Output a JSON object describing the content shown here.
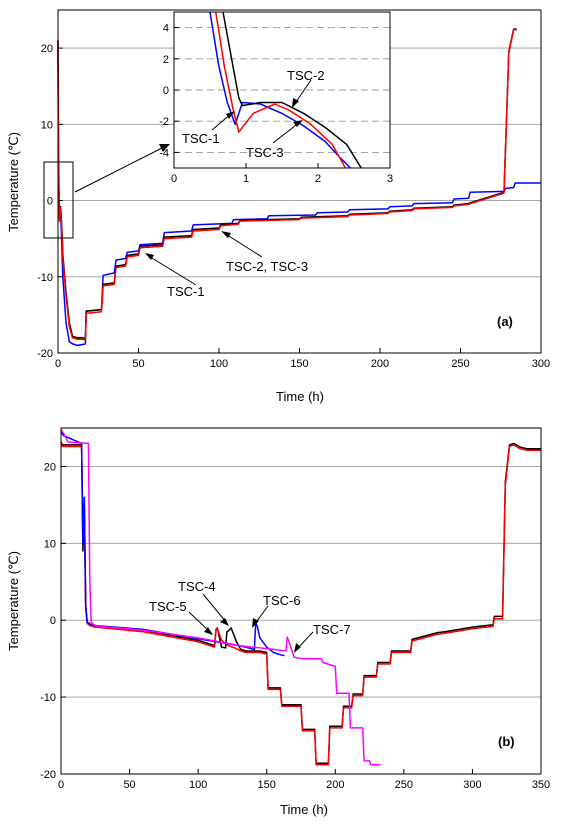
{
  "chart_data": [
    {
      "type": "line",
      "panel_label": "(a)",
      "xlabel": "Time (h)",
      "ylabel": "Temperature (℃)",
      "xlim": [
        0,
        300
      ],
      "ylim": [
        -20,
        25
      ],
      "xticks": [
        "0",
        "50",
        "100",
        "150",
        "200",
        "250",
        "300"
      ],
      "yticks": [
        "-20",
        "-10",
        "0",
        "10",
        "20"
      ],
      "grid": "horizontal gray lines at major y ticks",
      "colors": {
        "TSC-1": "#0000ff",
        "TSC-2": "#000000",
        "TSC-3": "#ff0000"
      },
      "series": [
        {
          "name": "TSC-1",
          "x": [
            0,
            0.3,
            0.6,
            0.9,
            1.2,
            1.5,
            2.0,
            3.0,
            5.0,
            7.0,
            9.0,
            12.0,
            15.0,
            17.0,
            17.5,
            27.0,
            28.0,
            35.0,
            36.0,
            42.0,
            43.0,
            50.0,
            51.0,
            65.0,
            66.0,
            83.0,
            84.0,
            108.0,
            109.0,
            130.0,
            131.0,
            160.0,
            161.0,
            180.0,
            181.0,
            205.0,
            206.0,
            220.0,
            221.0,
            245.0,
            246.0,
            255.0,
            256.0,
            277.0,
            278.0,
            283.0,
            284.0,
            300.0
          ],
          "y": [
            21.0,
            5.0,
            1.5,
            -2.3,
            -0.8,
            -1.5,
            -3.5,
            -10.0,
            -16.0,
            -18.5,
            -18.8,
            -19.0,
            -18.9,
            -18.8,
            -14.5,
            -14.3,
            -9.8,
            -9.5,
            -7.8,
            -7.6,
            -6.8,
            -6.6,
            -5.8,
            -5.6,
            -4.2,
            -4.0,
            -3.2,
            -3.0,
            -2.5,
            -2.4,
            -2.0,
            -1.9,
            -1.6,
            -1.5,
            -1.2,
            -1.1,
            -0.8,
            -0.7,
            -0.4,
            -0.3,
            0.2,
            0.3,
            1.1,
            1.2,
            1.6,
            1.7,
            2.3,
            2.3
          ]
        },
        {
          "name": "TSC-2",
          "x": [
            0,
            0.3,
            0.6,
            0.9,
            1.2,
            1.6,
            2.0,
            2.5,
            3.0,
            5.0,
            7.0,
            9.0,
            12.0,
            15.0,
            17.0,
            17.5,
            27.0,
            28.0,
            35.0,
            36.0,
            42.0,
            43.0,
            50.0,
            51.0,
            65.0,
            66.0,
            83.0,
            84.0,
            100.0,
            101.0,
            112.0,
            113.0,
            150.0,
            151.0,
            180.0,
            181.0,
            205.0,
            206.0,
            220.0,
            221.0,
            245.0,
            246.0,
            255.0,
            256.0,
            276.0,
            277.0,
            280.0,
            283.0,
            285.0
          ],
          "y": [
            21.0,
            3.5,
            0.5,
            -0.8,
            -0.9,
            -0.8,
            -1.9,
            -4.2,
            -7.0,
            -12.0,
            -16.0,
            -17.8,
            -18.0,
            -18.0,
            -18.1,
            -14.5,
            -14.3,
            -11.0,
            -10.8,
            -8.6,
            -8.4,
            -7.2,
            -7.0,
            -6.0,
            -5.8,
            -4.8,
            -4.6,
            -3.8,
            -3.6,
            -3.2,
            -3.0,
            -2.6,
            -2.4,
            -2.2,
            -2.0,
            -1.8,
            -1.6,
            -1.4,
            -1.2,
            -1.0,
            -0.8,
            -0.6,
            -0.4,
            -0.3,
            1.0,
            1.1,
            19.5,
            22.5,
            22.5
          ]
        },
        {
          "name": "TSC-3",
          "x": [
            0,
            0.3,
            0.6,
            0.85,
            1.2,
            1.6,
            2.0,
            2.5,
            3.0,
            5.0,
            7.0,
            9.0,
            12.0,
            15.0,
            17.0,
            17.5,
            27.0,
            28.0,
            35.0,
            36.0,
            42.0,
            43.0,
            50.0,
            51.0,
            65.0,
            66.0,
            83.0,
            84.0,
            100.0,
            101.0,
            112.0,
            113.0,
            150.0,
            151.0,
            180.0,
            181.0,
            205.0,
            206.0,
            220.0,
            221.0,
            245.0,
            246.0,
            255.0,
            256.0,
            276.0,
            277.0,
            280.0,
            283.0,
            285.0
          ],
          "y": [
            21.0,
            3.0,
            0.0,
            -2.7,
            -1.2,
            -0.9,
            -2.4,
            -4.6,
            -7.5,
            -12.5,
            -16.5,
            -18.0,
            -18.2,
            -18.2,
            -18.3,
            -14.8,
            -14.6,
            -11.2,
            -11.0,
            -8.8,
            -8.6,
            -7.4,
            -7.2,
            -6.2,
            -6.0,
            -5.0,
            -4.8,
            -4.0,
            -3.8,
            -3.3,
            -3.1,
            -2.7,
            -2.5,
            -2.3,
            -2.1,
            -1.9,
            -1.7,
            -1.5,
            -1.3,
            -1.1,
            -0.9,
            -0.7,
            -0.5,
            -0.4,
            0.9,
            1.0,
            19.3,
            22.4,
            22.4
          ]
        }
      ],
      "inset": {
        "xlim": [
          0,
          3
        ],
        "ylim": [
          -5,
          5
        ],
        "xticks": [
          "0",
          "1",
          "2",
          "3"
        ],
        "yticks": [
          "-4",
          "-2",
          "0",
          "2",
          "4"
        ],
        "grid": "dashed horizontal gray lines",
        "series": [
          {
            "name": "TSC-1",
            "x": [
              0.5,
              0.62,
              0.74,
              0.85,
              0.95,
              1.2,
              1.5,
              1.8,
              2.1,
              2.3,
              2.45
            ],
            "y": [
              5.0,
              1.6,
              -0.8,
              -2.2,
              -0.8,
              -0.9,
              -1.5,
              -2.3,
              -3.3,
              -4.3,
              -5.0
            ]
          },
          {
            "name": "TSC-2",
            "x": [
              0.68,
              0.8,
              0.9,
              0.95,
              1.2,
              1.5,
              1.8,
              2.1,
              2.4,
              2.6
            ],
            "y": [
              5.0,
              2.0,
              -0.5,
              -1.0,
              -0.8,
              -0.8,
              -1.5,
              -2.4,
              -3.5,
              -5.0
            ]
          },
          {
            "name": "TSC-3",
            "x": [
              0.58,
              0.7,
              0.82,
              0.9,
              1.1,
              1.4,
              1.6,
              1.9,
              2.2,
              2.38
            ],
            "y": [
              5.0,
              1.5,
              -1.2,
              -2.7,
              -1.5,
              -0.9,
              -1.3,
              -2.2,
              -3.5,
              -5.0
            ]
          }
        ]
      },
      "annotations": [
        "TSC-1",
        "TSC-2, TSC-3",
        "TSC-1",
        "TSC-2",
        "TSC-3"
      ]
    },
    {
      "type": "line",
      "panel_label": "(b)",
      "xlabel": "Time (h)",
      "ylabel": "Temperature (℃)",
      "xlim": [
        0,
        350
      ],
      "ylim": [
        -20,
        25
      ],
      "xticks": [
        "0",
        "50",
        "100",
        "150",
        "200",
        "250",
        "300",
        "350"
      ],
      "yticks": [
        "-20",
        "-10",
        "0",
        "10",
        "20"
      ],
      "grid": "horizontal gray lines at major y ticks",
      "colors": {
        "TSC-4": "#000000",
        "TSC-5": "#ff0000",
        "TSC-6": "#0000ff",
        "TSC-7": "#ff00ff"
      },
      "series": [
        {
          "name": "TSC-4",
          "x": [
            0,
            1,
            15,
            16,
            17,
            18,
            19,
            21,
            25,
            60,
            100,
            112,
            113,
            114,
            117,
            120,
            121,
            122,
            124,
            128,
            131,
            135,
            145,
            150,
            151,
            160,
            161,
            175,
            176,
            185,
            186,
            195,
            196,
            205,
            206,
            212,
            213,
            220,
            221,
            230,
            231,
            240,
            241,
            255,
            256,
            275,
            280,
            300,
            315,
            316,
            322,
            324,
            327,
            330,
            335,
            340,
            350
          ],
          "y": [
            23.2,
            22.8,
            22.8,
            9.0,
            15.0,
            2.0,
            -0.2,
            -0.5,
            -0.7,
            -1.3,
            -2.6,
            -3.3,
            -1.2,
            -1.0,
            -3.5,
            -3.6,
            -1.5,
            -1.4,
            -1.0,
            -2.8,
            -3.8,
            -4.0,
            -4.0,
            -4.2,
            -8.8,
            -8.8,
            -11.0,
            -11.0,
            -14.2,
            -14.2,
            -18.6,
            -18.6,
            -13.8,
            -13.8,
            -11.2,
            -11.2,
            -9.6,
            -9.6,
            -7.2,
            -7.2,
            -5.5,
            -5.5,
            -4.0,
            -4.0,
            -2.5,
            -1.6,
            -1.5,
            -0.9,
            -0.6,
            0.5,
            0.5,
            18.0,
            22.8,
            23.0,
            22.5,
            22.3,
            22.3
          ]
        },
        {
          "name": "TSC-5",
          "x": [
            0,
            1,
            15,
            16,
            17,
            18,
            19,
            21,
            25,
            60,
            100,
            112,
            113,
            114,
            117,
            120,
            122,
            128,
            131,
            135,
            145,
            150,
            151,
            160,
            161,
            175,
            176,
            185,
            186,
            195,
            196,
            205,
            206,
            212,
            213,
            220,
            221,
            230,
            231,
            240,
            241,
            255,
            256,
            275,
            280,
            300,
            315,
            316,
            322,
            324,
            327,
            330,
            335,
            340,
            350
          ],
          "y": [
            23.0,
            22.6,
            22.6,
            11.0,
            14.0,
            1.5,
            -0.4,
            -0.7,
            -0.9,
            -1.5,
            -2.8,
            -3.5,
            -1.2,
            -1.1,
            -2.6,
            -3.0,
            -3.3,
            -3.7,
            -4.0,
            -4.2,
            -4.2,
            -4.4,
            -9.0,
            -9.0,
            -11.2,
            -11.2,
            -14.4,
            -14.4,
            -18.8,
            -18.8,
            -14.0,
            -14.0,
            -11.4,
            -11.4,
            -9.8,
            -9.8,
            -7.4,
            -7.4,
            -5.7,
            -5.7,
            -4.2,
            -4.2,
            -2.7,
            -1.8,
            -1.7,
            -1.1,
            -0.8,
            0.2,
            0.2,
            17.5,
            22.6,
            22.8,
            22.3,
            22.1,
            22.1
          ]
        },
        {
          "name": "TSC-6",
          "x": [
            0,
            2,
            15,
            16,
            17,
            18,
            19,
            21,
            25,
            60,
            100,
            130,
            141,
            142,
            143,
            145,
            150,
            155,
            160,
            163
          ],
          "y": [
            24.5,
            24.0,
            23.0,
            10.0,
            16.0,
            2.0,
            -0.2,
            -0.5,
            -0.7,
            -1.2,
            -2.4,
            -3.3,
            -3.8,
            -0.4,
            -0.7,
            -2.3,
            -3.5,
            -4.2,
            -4.5,
            -4.6
          ]
        },
        {
          "name": "TSC-7",
          "x": [
            0,
            2,
            5,
            10,
            20,
            21,
            22,
            24,
            28,
            60,
            100,
            130,
            155,
            164,
            165,
            167,
            170,
            175,
            180,
            185,
            190,
            191,
            200,
            201,
            210,
            211,
            220,
            221,
            225,
            226,
            233
          ],
          "y": [
            24.8,
            24.3,
            23.2,
            23.1,
            23.0,
            5.0,
            -0.3,
            -0.6,
            -0.8,
            -1.3,
            -2.3,
            -3.3,
            -3.8,
            -4.0,
            -2.2,
            -3.2,
            -4.8,
            -5.0,
            -5.0,
            -5.0,
            -5.0,
            -5.5,
            -6.0,
            -9.5,
            -9.5,
            -14.0,
            -14.0,
            -18.3,
            -18.3,
            -18.8,
            -18.8
          ]
        }
      ],
      "annotations": [
        "TSC-4",
        "TSC-5",
        "TSC-6",
        "TSC-7"
      ]
    }
  ]
}
